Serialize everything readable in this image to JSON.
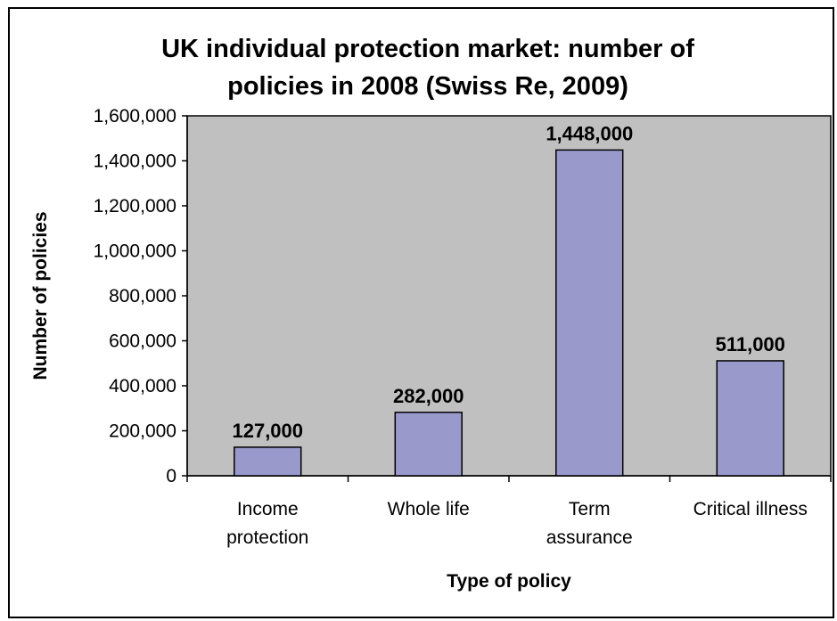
{
  "chart_data": {
    "type": "bar",
    "title": [
      "UK individual protection market: number of",
      "policies in 2008 (Swiss Re, 2009)"
    ],
    "categories": [
      [
        "Income",
        "protection"
      ],
      [
        "Whole life"
      ],
      [
        "Term",
        "assurance"
      ],
      [
        "Critical illness"
      ]
    ],
    "values": [
      127000,
      282000,
      1448000,
      511000
    ],
    "data_labels": [
      "127,000",
      "282,000",
      "1,448,000",
      "511,000"
    ],
    "xlabel": "Type of policy",
    "ylabel": "Number of policies",
    "ylim": [
      0,
      1600000
    ],
    "yticks": [
      0,
      200000,
      400000,
      600000,
      800000,
      1000000,
      1200000,
      1400000,
      1600000
    ],
    "ytick_labels": [
      "0",
      "200,000",
      "400,000",
      "600,000",
      "800,000",
      "1,000,000",
      "1,200,000",
      "1,400,000",
      "1,600,000"
    ],
    "grid": false,
    "legend": "none",
    "colors": {
      "plot_background": "#c0c0c0",
      "bar_fill": "#9999cc",
      "bar_stroke": "#000000",
      "frame_stroke": "#000000"
    }
  }
}
